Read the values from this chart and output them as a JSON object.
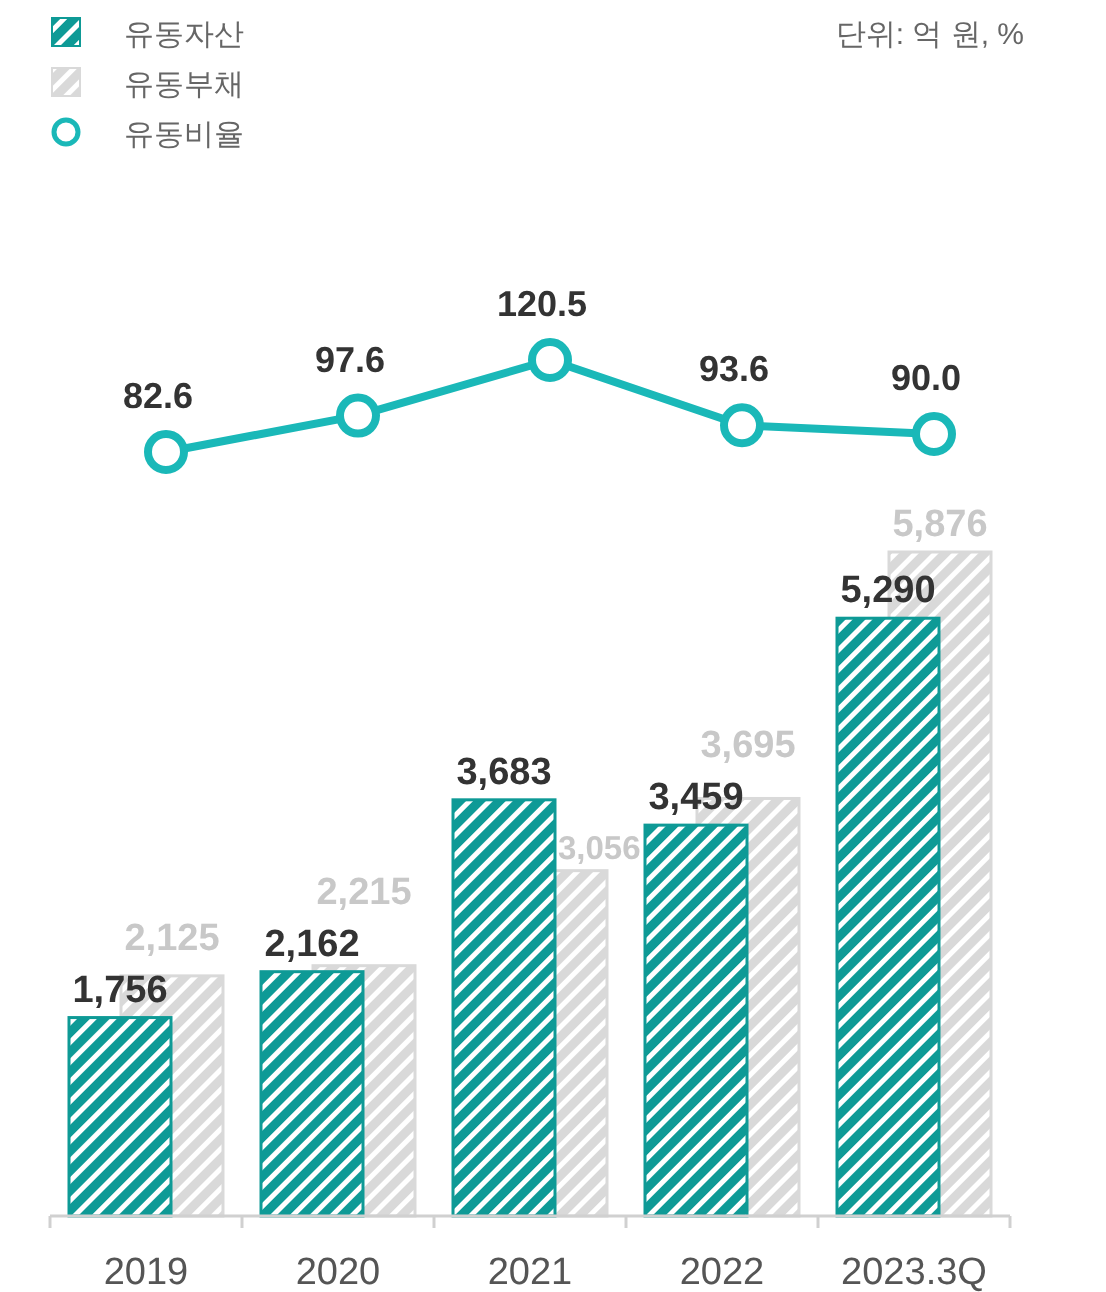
{
  "chart_data": [
    {
      "type": "line",
      "categories": [
        null,
        null,
        null,
        null,
        null
      ],
      "series": [
        {
          "name": "유동비율",
          "color": "#1ab8b8",
          "values": [
            82.6,
            97.6,
            120.5,
            93.6,
            90.0
          ],
          "value_labels": [
            "82.6",
            "97.6",
            "120.5",
            "93.6",
            "90.0"
          ]
        }
      ],
      "marker": "circle",
      "legend": "top left"
    },
    {
      "type": "bar",
      "categories": [
        "2019",
        "2020",
        "2021",
        "2022",
        "2023.3Q"
      ],
      "series": [
        {
          "name": "유동자산",
          "color": "#0e9a96",
          "values": [
            1756,
            2162,
            3683,
            3459,
            5290
          ],
          "value_labels": [
            "1,756",
            "2,162",
            "3,683",
            "3,459",
            "5,290"
          ]
        },
        {
          "name": "유동부채",
          "color": "#d9d9d9",
          "values": [
            2125,
            2215,
            3056,
            3695,
            5876
          ],
          "value_labels": [
            "2,125",
            "2,215",
            "3,056",
            "3,695",
            "5,876"
          ]
        }
      ],
      "legend": "top left",
      "annotations": [
        "단위: 억 원, %"
      ]
    }
  ]
}
